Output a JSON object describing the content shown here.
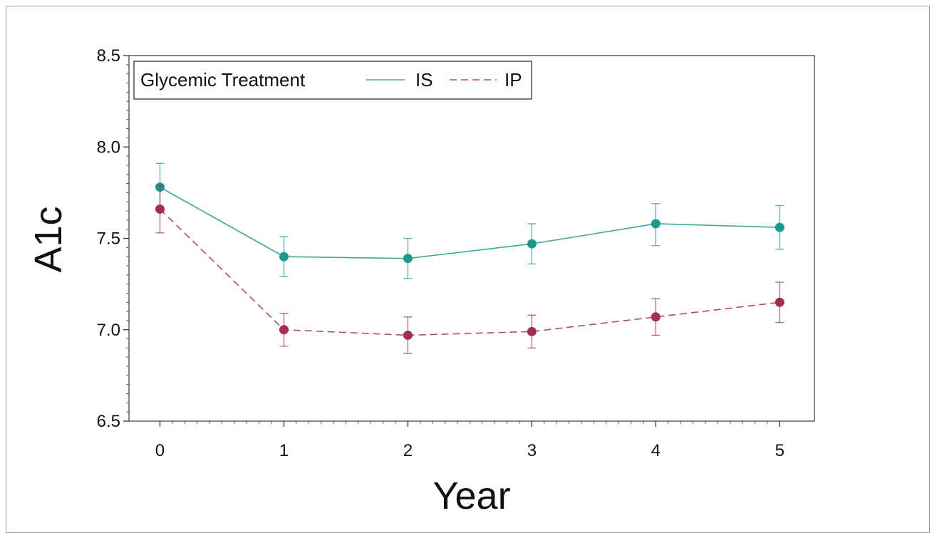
{
  "chart_data": {
    "type": "line",
    "xlabel": "Year",
    "ylabel": "A1c",
    "x": [
      0,
      1,
      2,
      3,
      4,
      5
    ],
    "xlim": [
      -0.25,
      5.28
    ],
    "ylim": [
      6.5,
      8.5
    ],
    "yticks": [
      "6.5",
      "7.0",
      "7.5",
      "8.0",
      "8.5"
    ],
    "xticks": [
      "0",
      "1",
      "2",
      "3",
      "4",
      "5"
    ],
    "grid": false,
    "legend": {
      "title": "Glycemic Treatment",
      "placement": "top-left"
    },
    "series": [
      {
        "name": "IS",
        "color": "#1a9a8c",
        "style": "solid",
        "values": [
          7.78,
          7.4,
          7.39,
          7.47,
          7.58,
          7.56
        ],
        "lower": [
          7.66,
          7.29,
          7.28,
          7.36,
          7.46,
          7.44
        ],
        "upper": [
          7.91,
          7.51,
          7.5,
          7.58,
          7.69,
          7.68
        ]
      },
      {
        "name": "IP",
        "color": "#a3304a",
        "style": "dashed",
        "values": [
          7.66,
          7.0,
          6.97,
          6.99,
          7.07,
          7.15
        ],
        "lower": [
          7.53,
          6.91,
          6.87,
          6.9,
          6.97,
          7.04
        ],
        "upper": [
          7.79,
          7.09,
          7.07,
          7.08,
          7.17,
          7.26
        ]
      }
    ]
  }
}
